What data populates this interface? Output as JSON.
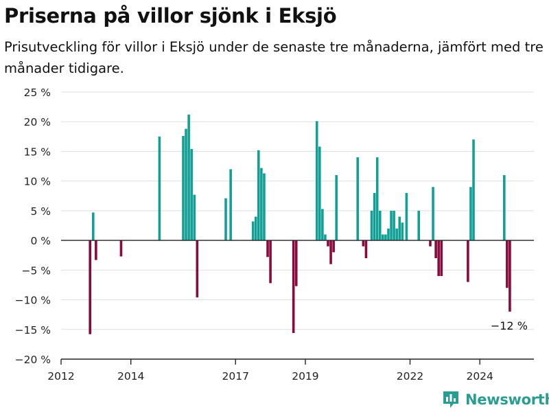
{
  "header": {
    "title": "Priserna på villor sjönk i Eksjö",
    "subtitle": "Prisutveckling för villor i Eksjö under de senaste tre månaderna, jämfört med tre månader tidigare."
  },
  "brand": {
    "name": "Newsworthy",
    "logo_icon": "bar-chart-icon"
  },
  "chart_data": {
    "type": "bar",
    "ylim": [
      -20,
      25
    ],
    "yticks": [
      25,
      20,
      15,
      10,
      5,
      0,
      -5,
      -10,
      -15,
      -20
    ],
    "ytick_labels": [
      "25 %",
      "20 %",
      "15 %",
      "10 %",
      "5 %",
      "0 %",
      "−5 %",
      "−10 %",
      "−15 %",
      "−20 %"
    ],
    "xlim": [
      2012.0,
      2025.55
    ],
    "xticks": [
      2012,
      2014,
      2017,
      2019,
      2022,
      2024
    ],
    "xtick_labels": [
      "2012",
      "2014",
      "2017",
      "2019",
      "2022",
      "2024"
    ],
    "grid": true,
    "colors": {
      "positive": "#12a096",
      "negative": "#8b0a3e",
      "grid": "#dedede",
      "axis": "#222222"
    },
    "annotation": {
      "text": "−12 %",
      "x": 2024.86,
      "y": -12
    },
    "points": [
      {
        "x": 2012.83,
        "y": -15.8
      },
      {
        "x": 2012.92,
        "y": 4.7
      },
      {
        "x": 2013.0,
        "y": -3.3
      },
      {
        "x": 2013.72,
        "y": -2.7
      },
      {
        "x": 2014.82,
        "y": 17.5
      },
      {
        "x": 2015.5,
        "y": 17.6
      },
      {
        "x": 2015.58,
        "y": 18.8
      },
      {
        "x": 2015.66,
        "y": 21.2
      },
      {
        "x": 2015.74,
        "y": 15.4
      },
      {
        "x": 2015.82,
        "y": 7.7
      },
      {
        "x": 2015.9,
        "y": -9.6
      },
      {
        "x": 2016.72,
        "y": 7.1
      },
      {
        "x": 2016.86,
        "y": 12.0
      },
      {
        "x": 2017.5,
        "y": 3.2
      },
      {
        "x": 2017.58,
        "y": 4.0
      },
      {
        "x": 2017.66,
        "y": 15.2
      },
      {
        "x": 2017.74,
        "y": 12.2
      },
      {
        "x": 2017.82,
        "y": 11.3
      },
      {
        "x": 2017.92,
        "y": -2.8
      },
      {
        "x": 2018.0,
        "y": -7.2
      },
      {
        "x": 2018.66,
        "y": -15.6
      },
      {
        "x": 2018.74,
        "y": -7.7
      },
      {
        "x": 2019.33,
        "y": 20.1
      },
      {
        "x": 2019.41,
        "y": 15.8
      },
      {
        "x": 2019.49,
        "y": 5.3
      },
      {
        "x": 2019.57,
        "y": 1.0
      },
      {
        "x": 2019.65,
        "y": -1.0
      },
      {
        "x": 2019.73,
        "y": -4.0
      },
      {
        "x": 2019.81,
        "y": -2.0
      },
      {
        "x": 2019.89,
        "y": 11.0
      },
      {
        "x": 2020.5,
        "y": 14.0
      },
      {
        "x": 2020.66,
        "y": -1.0
      },
      {
        "x": 2020.74,
        "y": -3.0
      },
      {
        "x": 2020.9,
        "y": 5.0
      },
      {
        "x": 2020.98,
        "y": 8.0
      },
      {
        "x": 2021.06,
        "y": 14.0
      },
      {
        "x": 2021.14,
        "y": 5.0
      },
      {
        "x": 2021.22,
        "y": 1.0
      },
      {
        "x": 2021.3,
        "y": 1.0
      },
      {
        "x": 2021.38,
        "y": 2.0
      },
      {
        "x": 2021.46,
        "y": 5.0
      },
      {
        "x": 2021.54,
        "y": 5.0
      },
      {
        "x": 2021.62,
        "y": 2.0
      },
      {
        "x": 2021.7,
        "y": 4.0
      },
      {
        "x": 2021.78,
        "y": 3.0
      },
      {
        "x": 2021.9,
        "y": 8.0
      },
      {
        "x": 2022.25,
        "y": 5.0
      },
      {
        "x": 2022.58,
        "y": -1.0
      },
      {
        "x": 2022.66,
        "y": 9.0
      },
      {
        "x": 2022.74,
        "y": -3.0
      },
      {
        "x": 2022.82,
        "y": -6.0
      },
      {
        "x": 2022.9,
        "y": -6.0
      },
      {
        "x": 2023.66,
        "y": -7.0
      },
      {
        "x": 2023.74,
        "y": 9.0
      },
      {
        "x": 2023.82,
        "y": 17.0
      },
      {
        "x": 2024.7,
        "y": 11.0
      },
      {
        "x": 2024.78,
        "y": -8.0
      },
      {
        "x": 2024.86,
        "y": -12.0
      }
    ]
  }
}
